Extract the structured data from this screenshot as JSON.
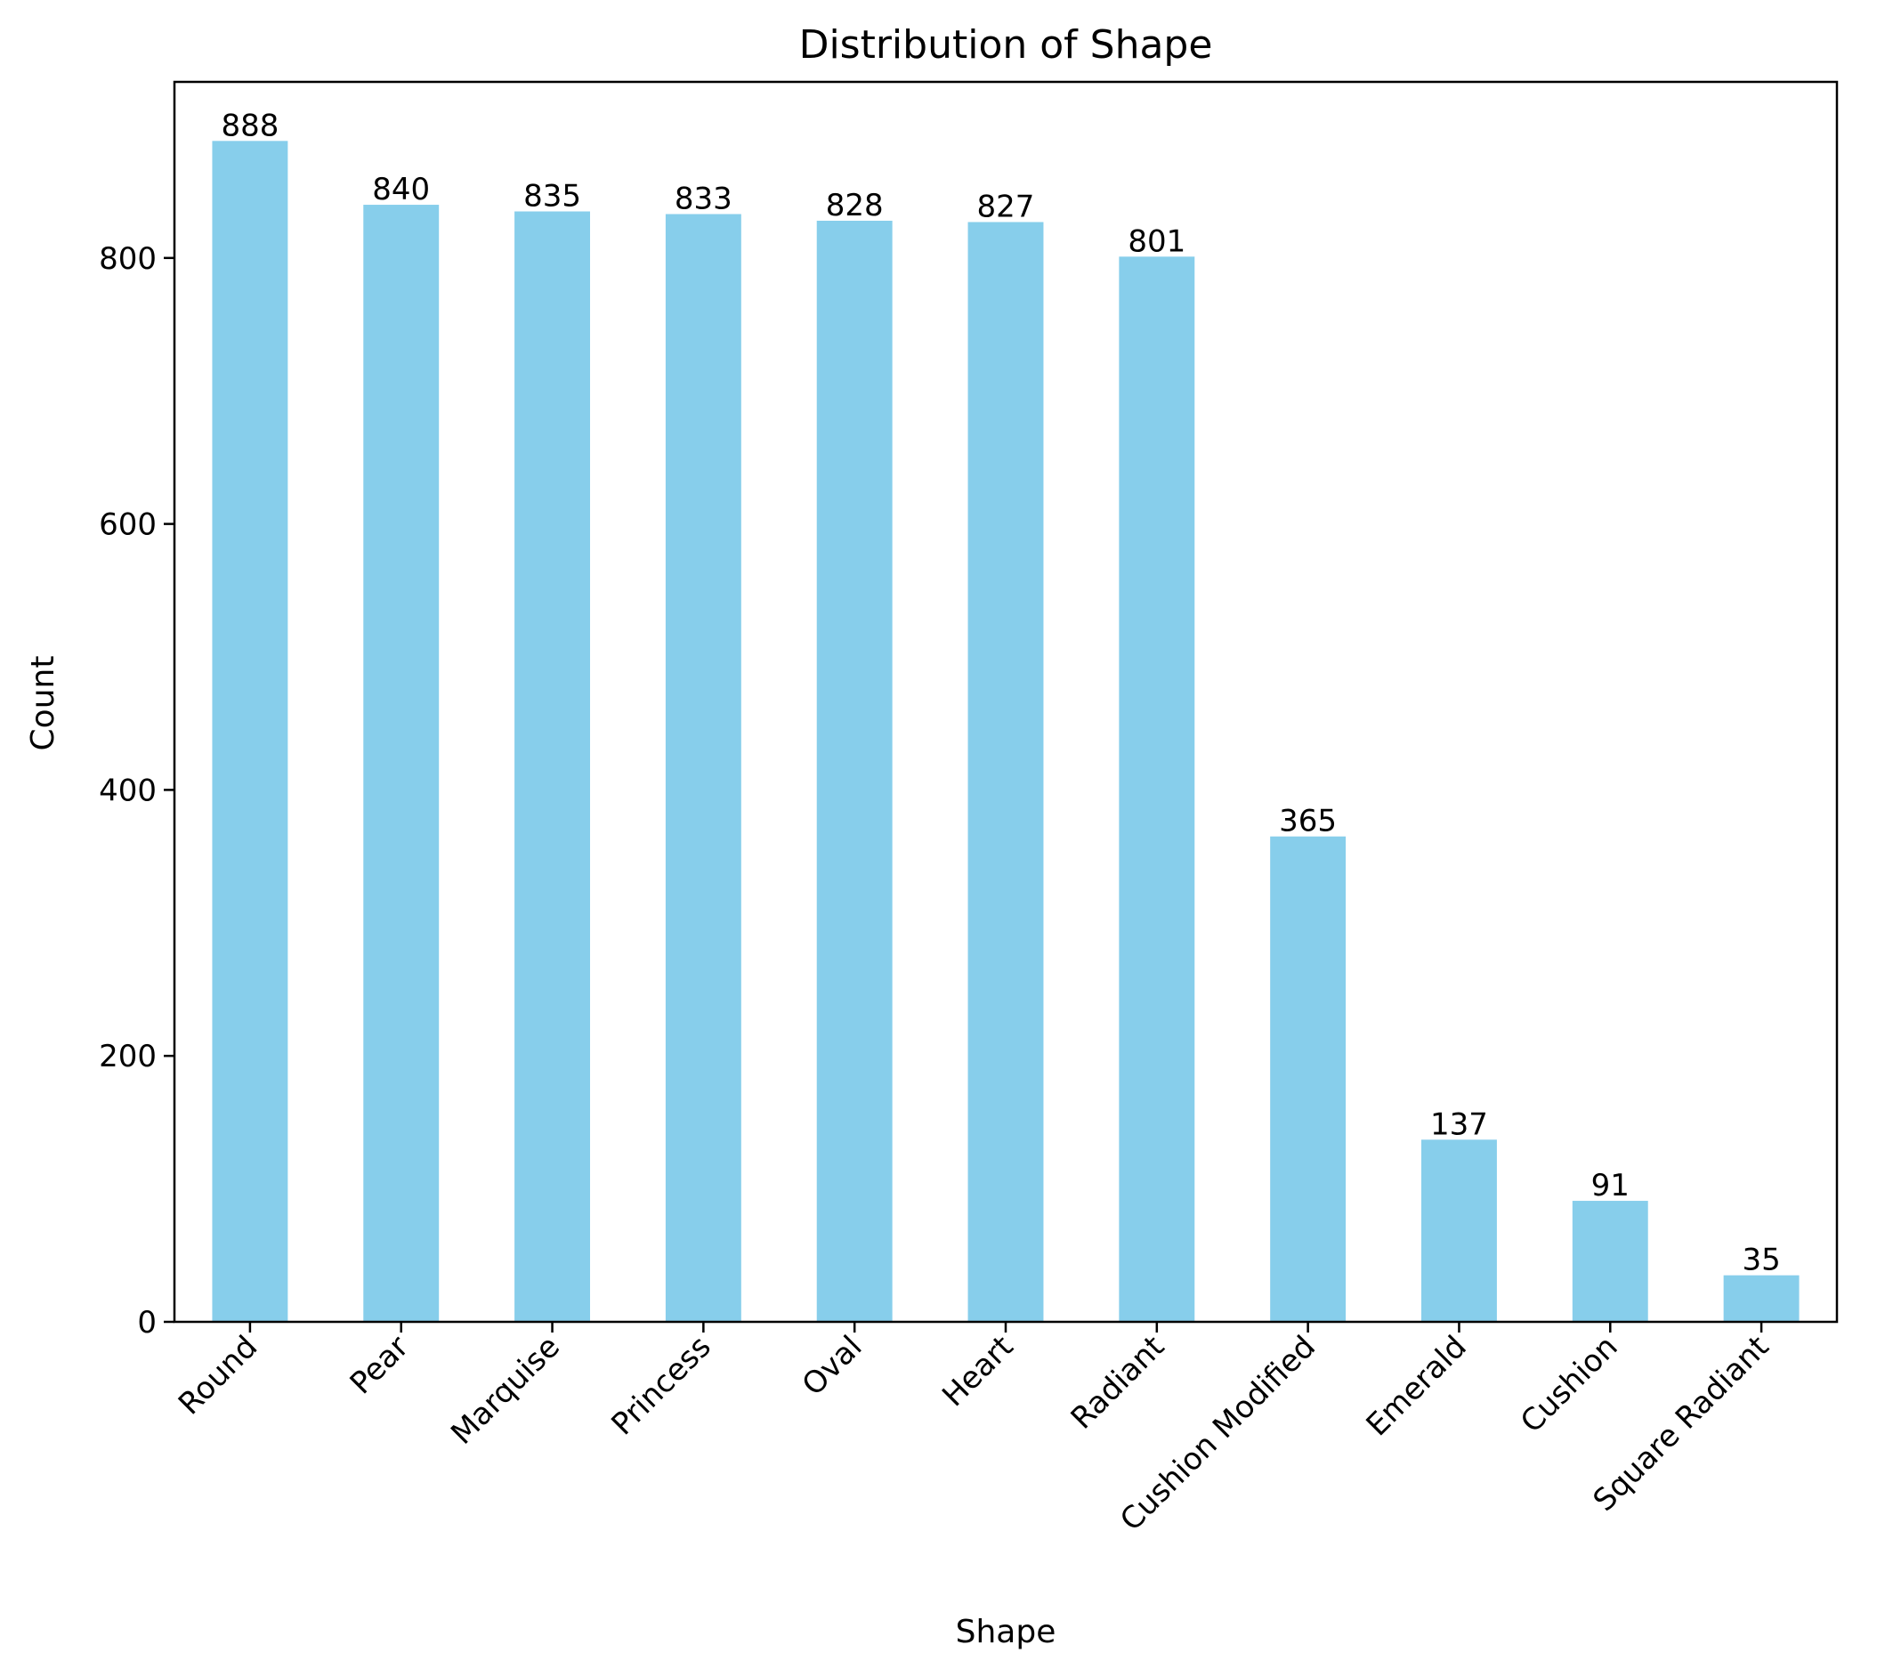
{
  "chart_data": {
    "type": "bar",
    "title": "Distribution of Shape",
    "xlabel": "Shape",
    "ylabel": "Count",
    "categories": [
      "Round",
      "Pear",
      "Marquise",
      "Princess",
      "Oval",
      "Heart",
      "Radiant",
      "Cushion Modified",
      "Emerald",
      "Cushion",
      "Square Radiant"
    ],
    "values": [
      888,
      840,
      835,
      833,
      828,
      827,
      801,
      365,
      137,
      91,
      35
    ],
    "value_labels": [
      "888",
      "840",
      "835",
      "833",
      "828",
      "827",
      "801",
      "365",
      "137",
      "91",
      "35"
    ],
    "yticks": [
      0,
      200,
      400,
      600,
      800
    ],
    "ytick_labels": [
      "0",
      "200",
      "400",
      "600",
      "800"
    ],
    "ylim": [
      0,
      932.4
    ],
    "bar_color": "#87ceeb",
    "grid": false,
    "legend": false
  }
}
